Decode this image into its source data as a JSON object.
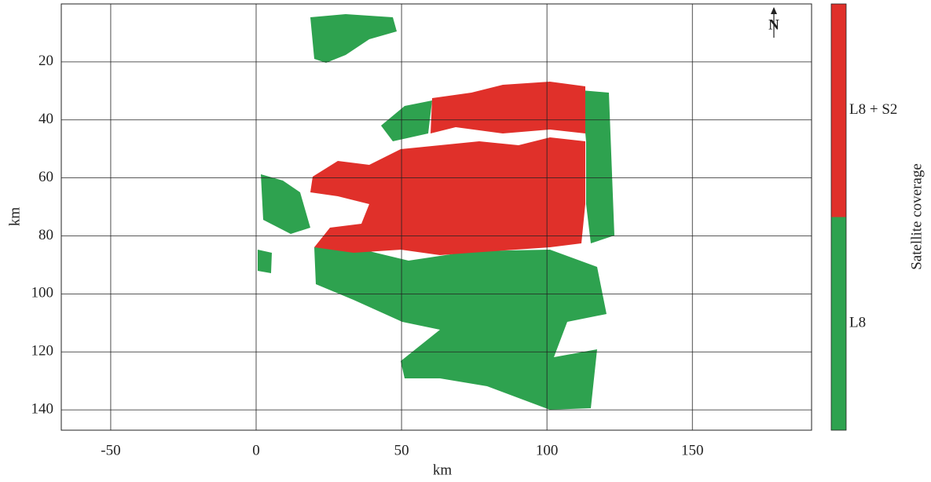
{
  "chart_data": {
    "type": "map",
    "x_label": "km",
    "y_label": "km",
    "xlim": [
      -67,
      191
    ],
    "ylim": [
      0,
      147
    ],
    "y_reversed": true,
    "xticks": [
      -50,
      0,
      50,
      100,
      150
    ],
    "yticks": [
      20,
      40,
      60,
      80,
      100,
      120,
      140
    ],
    "grid": true,
    "north_label": "N",
    "colorbar": {
      "label": "Satellite coverage",
      "classes": [
        {
          "name": "L8 + S2",
          "color": "#e0302a"
        },
        {
          "name": "L8",
          "color": "#2ea24f"
        }
      ]
    }
  }
}
